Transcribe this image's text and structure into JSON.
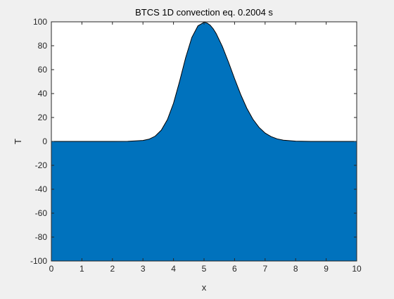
{
  "chart_data": {
    "type": "area",
    "title": "BTCS 1D convection eq. 0.2004 s",
    "xlabel": "x",
    "ylabel": "T",
    "xlim": [
      0,
      10
    ],
    "ylim": [
      -100,
      100
    ],
    "xticks": [
      0,
      1,
      2,
      3,
      4,
      5,
      6,
      7,
      8,
      9,
      10
    ],
    "yticks": [
      -100,
      -80,
      -60,
      -40,
      -20,
      0,
      20,
      40,
      60,
      80,
      100
    ],
    "xtick_labels": [
      "0",
      "1",
      "2",
      "3",
      "4",
      "5",
      "6",
      "7",
      "8",
      "9",
      "10"
    ],
    "ytick_labels": [
      "-100",
      "-80",
      "-60",
      "-40",
      "-20",
      "0",
      "20",
      "40",
      "60",
      "80",
      "100"
    ],
    "grid": false,
    "baseline": -100,
    "fill_color": "#0072bd",
    "line_color": "#000000",
    "series": [
      {
        "x": [
          0,
          0.5,
          1,
          1.5,
          2,
          2.5,
          3,
          3.2,
          3.4,
          3.6,
          3.8,
          4,
          4.2,
          4.4,
          4.6,
          4.8,
          5,
          5.1,
          5.2,
          5.3,
          5.4,
          5.6,
          5.8,
          6,
          6.2,
          6.4,
          6.6,
          6.8,
          7,
          7.2,
          7.4,
          7.6,
          8,
          8.5,
          9,
          9.5,
          10
        ],
        "values": [
          0,
          0,
          0,
          0,
          0,
          0.1,
          0.8,
          1.9,
          4.4,
          9.4,
          18.2,
          31.9,
          50.3,
          70.2,
          86.9,
          96.6,
          99.6,
          99.0,
          97.2,
          94.2,
          90.1,
          79.4,
          66.4,
          52.5,
          39.3,
          27.8,
          18.6,
          11.8,
          7.0,
          4.0,
          2.1,
          1.0,
          0.2,
          0,
          0,
          0,
          0
        ]
      }
    ]
  }
}
